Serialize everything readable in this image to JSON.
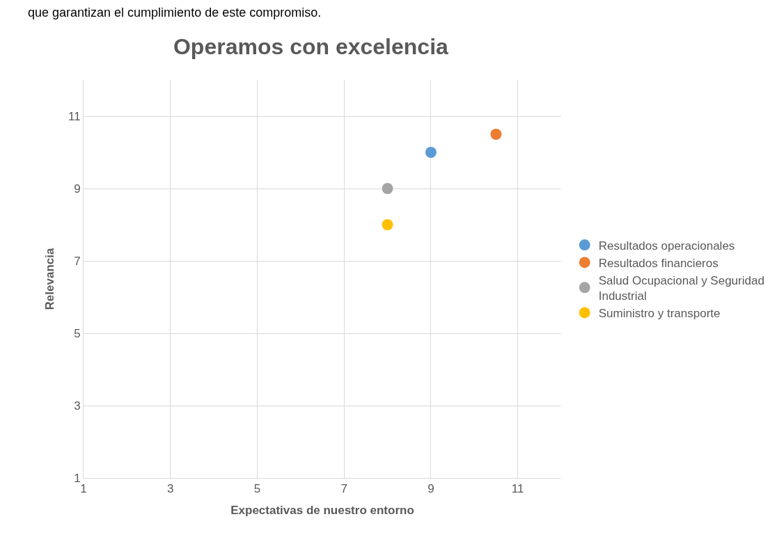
{
  "chart_data": {
    "type": "scatter",
    "title": "Operamos con excelencia",
    "xlabel": "Expectativas de nuestro entorno",
    "ylabel": "Relevancia",
    "annotations": [
      "que garantizan el cumplimiento de este compromiso."
    ],
    "series": [
      {
        "name": "Resultados operacionales",
        "color": "#5b9bd5",
        "x": [
          9
        ],
        "values": [
          10
        ]
      },
      {
        "name": "Resultados financieros",
        "color": "#ed7d31",
        "x": [
          10.5
        ],
        "values": [
          10.5
        ]
      },
      {
        "name": "Salud Ocupacional y Seguridad Industrial",
        "color": "#a5a5a5",
        "x": [
          8
        ],
        "values": [
          9
        ]
      },
      {
        "name": "Suministro y transporte",
        "color": "#ffc000",
        "x": [
          8
        ],
        "values": [
          8
        ]
      }
    ],
    "xlim": [
      1,
      12
    ],
    "ylim": [
      1,
      12
    ],
    "xticks": [
      1,
      3,
      5,
      7,
      9,
      11
    ],
    "yticks": [
      1,
      3,
      5,
      7,
      9,
      11
    ],
    "grid": true,
    "legend": "right",
    "marker": "circle"
  }
}
